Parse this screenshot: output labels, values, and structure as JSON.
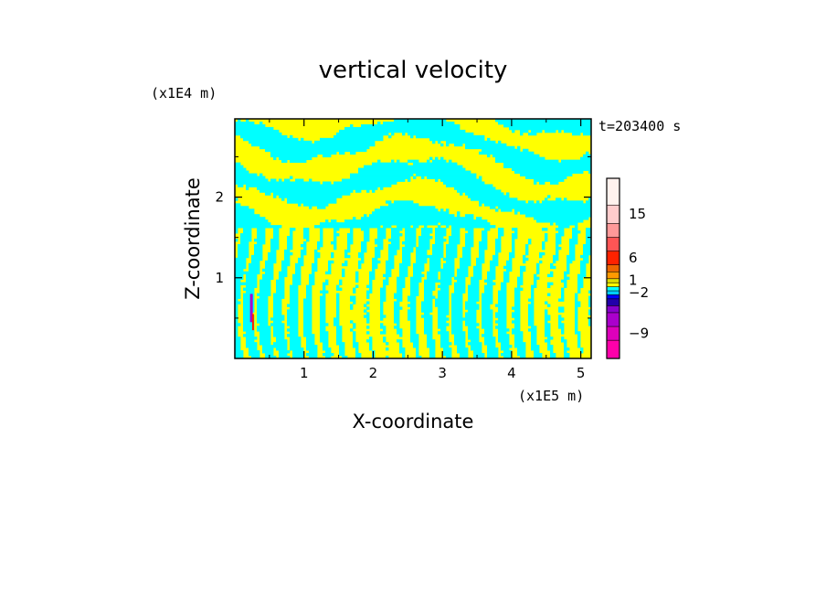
{
  "chart_data": {
    "type": "heatmap",
    "title": "vertical velocity",
    "xlabel": "X-coordinate",
    "ylabel": "Z-coordinate",
    "x_unit": "(x1E5 m)",
    "y_unit": "(x1E4 m)",
    "time_label": "t=203400 s",
    "xlim": [
      0,
      5.15
    ],
    "ylim": [
      0,
      2.97
    ],
    "x_ticks": [
      1,
      2,
      3,
      4,
      5
    ],
    "y_ticks": [
      1,
      2
    ],
    "x_tick_labels": [
      "1",
      "2",
      "3",
      "4",
      "5"
    ],
    "y_tick_labels": [
      "1",
      "2"
    ],
    "grid": false,
    "colorbar": {
      "levels": [
        -12,
        -9,
        -6,
        -4,
        -2,
        -1,
        -0.5,
        0,
        0.5,
        1,
        2,
        4,
        6,
        9,
        12,
        15,
        18,
        21
      ],
      "colors": [
        "#ff00aa",
        "#dd00bb",
        "#aa00cc",
        "#8800cc",
        "#2200aa",
        "#0000ff",
        "#00ccff",
        "#00ffff",
        "#ffff00",
        "#dddd00",
        "#ff9900",
        "#ee6600",
        "#ff2200",
        "#ff5555",
        "#ff9999",
        "#ffcccc",
        "#fff2ee"
      ],
      "tick_labels": [
        "15",
        "6",
        "1",
        "−2",
        "−9"
      ]
    }
  }
}
